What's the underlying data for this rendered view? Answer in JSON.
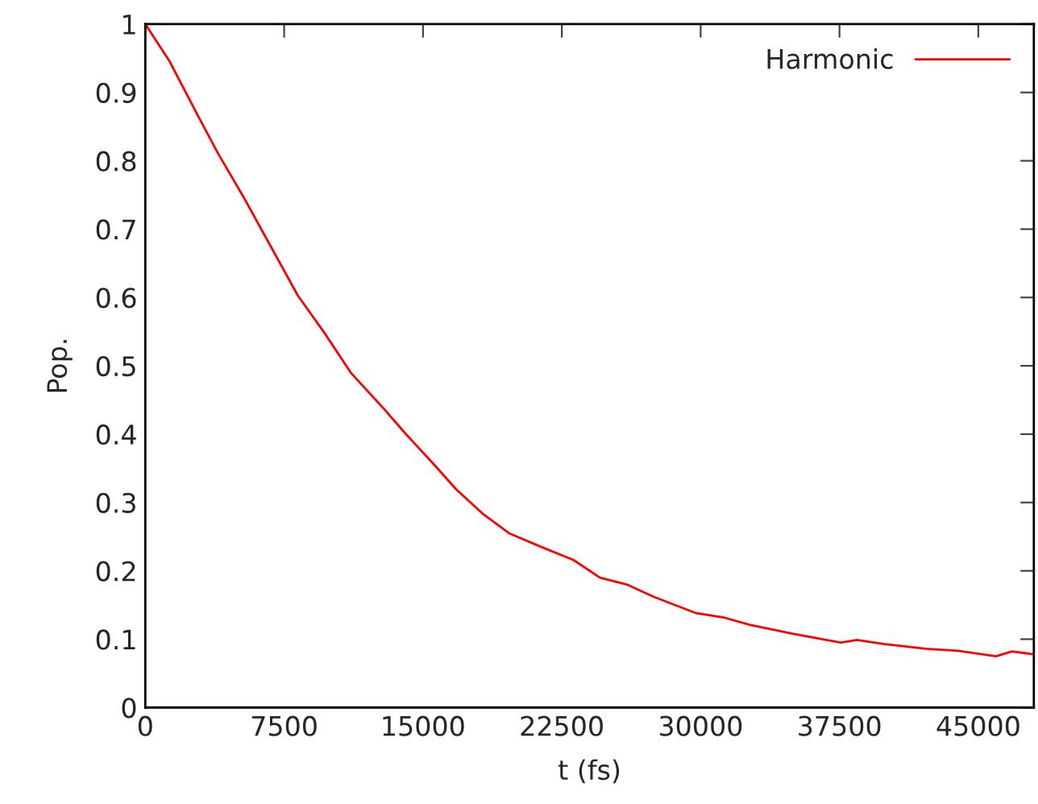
{
  "chart_data": {
    "type": "line",
    "xlabel": "t (fs)",
    "ylabel": "Pop.",
    "x": [
      0,
      1301,
      2746,
      3902,
      5347,
      6792,
      8237,
      9682,
      11127,
      12861,
      14017,
      15751,
      16763,
      18208,
      19653,
      21387,
      23121,
      24566,
      26012,
      27457,
      29769,
      31214,
      32659,
      34971,
      37572,
      38439,
      39884,
      42197,
      43931,
      45951,
      46821,
      47977
    ],
    "series": [
      {
        "name": "Harmonic",
        "color": "#ff0000",
        "values": [
          1.0,
          0.946,
          0.871,
          0.812,
          0.745,
          0.674,
          0.603,
          0.548,
          0.489,
          0.438,
          0.402,
          0.351,
          0.32,
          0.284,
          0.255,
          0.235,
          0.216,
          0.19,
          0.18,
          0.162,
          0.138,
          0.132,
          0.121,
          0.108,
          0.095,
          0.099,
          0.093,
          0.086,
          0.083,
          0.075,
          0.082,
          0.078
        ]
      }
    ],
    "xlim": [
      0,
      48000
    ],
    "xticks": [
      0,
      7500,
      15000,
      22500,
      30000,
      37500,
      45000
    ],
    "ylim": [
      0,
      1
    ],
    "yticks": [
      0,
      0.1,
      0.2,
      0.3,
      0.4,
      0.5,
      0.6,
      0.7,
      0.8,
      0.9,
      1
    ],
    "grid": false,
    "legend": "top right",
    "marker": "none",
    "line_style": "solid"
  }
}
